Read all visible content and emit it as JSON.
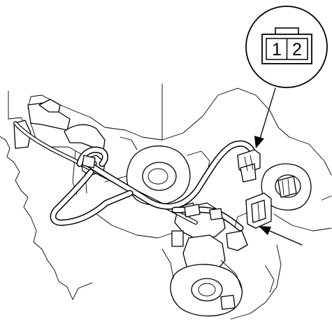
{
  "connector_callout": {
    "pins": [
      "1",
      "2"
    ]
  },
  "colors": {
    "line": "#000000",
    "background": "#ffffff"
  }
}
